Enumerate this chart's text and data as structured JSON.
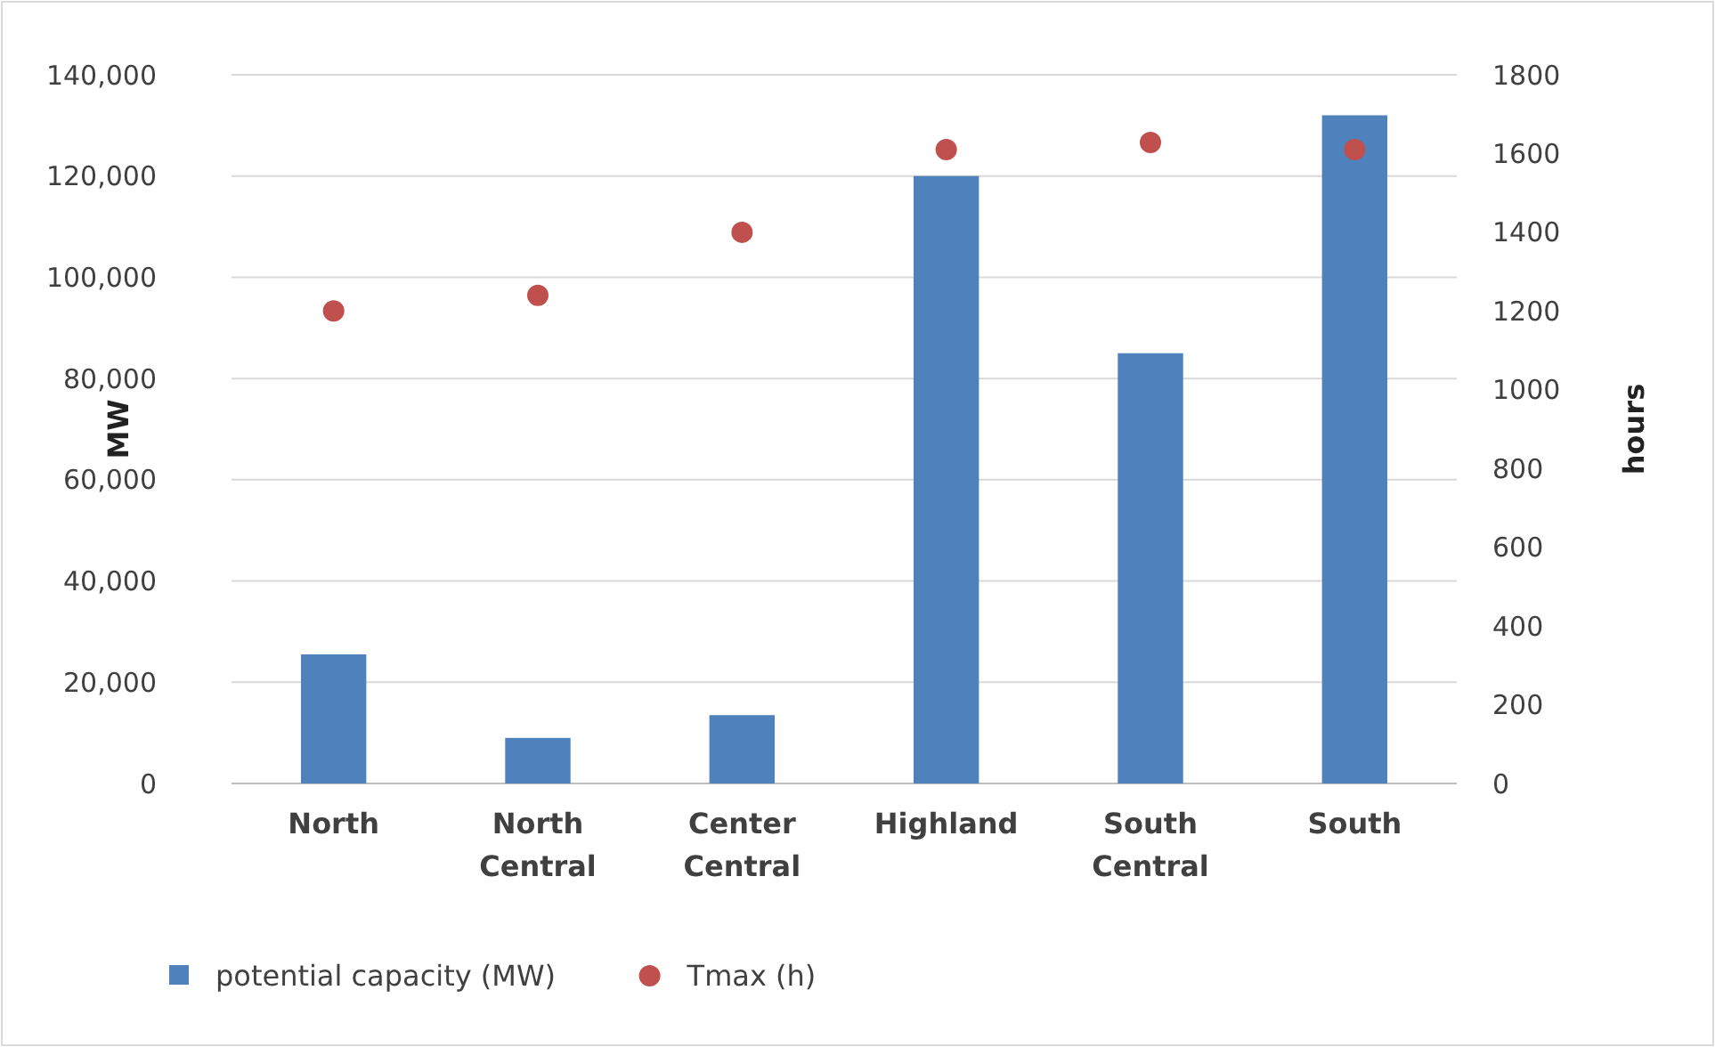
{
  "chart_data": {
    "type": "bar",
    "ylabel": "MW",
    "y2label": "hours",
    "categories": [
      "North",
      "North Central",
      "Center Central",
      "Highland",
      "South Central",
      "South"
    ],
    "series": [
      {
        "name": "potential capacity (MW)",
        "color": "#4f81bd",
        "values": [
          25500,
          9000,
          13500,
          120000,
          85000,
          132000
        ]
      },
      {
        "name": "Tmax (h)",
        "type": "scatter",
        "axis": "y2",
        "color": "#c0504d",
        "marker": "circle",
        "values": [
          1200,
          1240,
          1400,
          1610,
          1628,
          1610
        ]
      }
    ],
    "ylim": [
      0,
      140000
    ],
    "yticks": [
      {
        "value": 0,
        "label": "0"
      },
      {
        "value": 20000,
        "label": "20,000"
      },
      {
        "value": 40000,
        "label": "40,000"
      },
      {
        "value": 60000,
        "label": "60,000"
      },
      {
        "value": 80000,
        "label": "80,000"
      },
      {
        "value": 100000,
        "label": "100,000"
      },
      {
        "value": 120000,
        "label": "120,000"
      },
      {
        "value": 140000,
        "label": "140,000"
      }
    ],
    "y2lim": [
      0,
      1800
    ],
    "y2ticks": [
      0,
      200,
      400,
      600,
      800,
      1000,
      1200,
      1400,
      1600,
      1800
    ],
    "grid": "y",
    "legend": "bottom"
  }
}
